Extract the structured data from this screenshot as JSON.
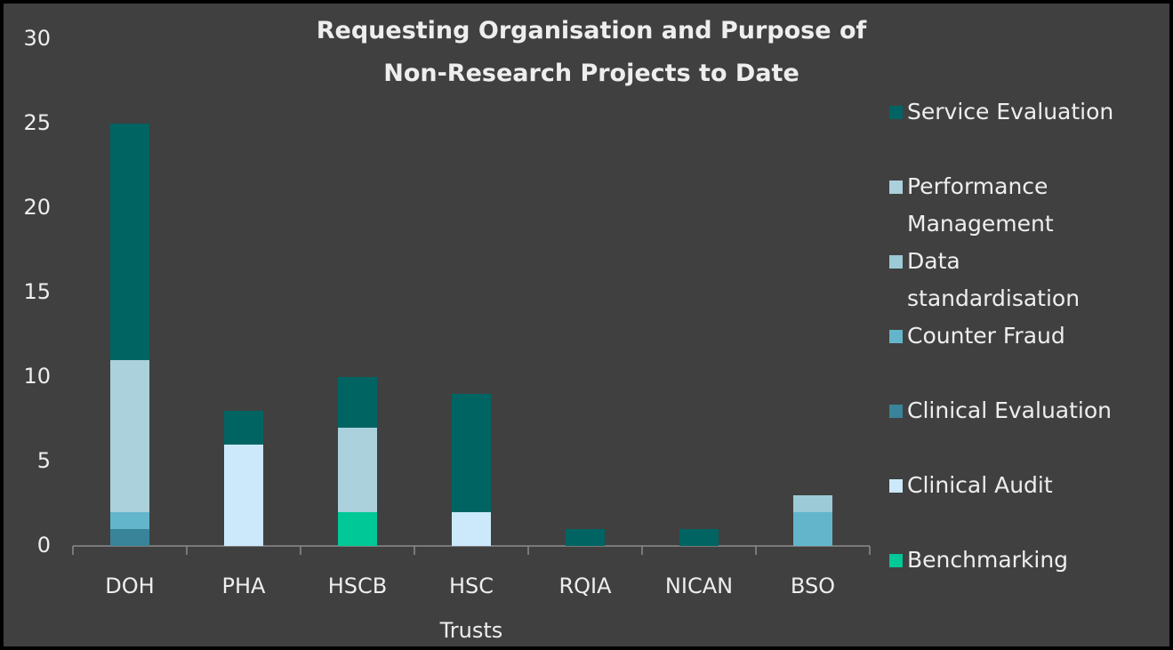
{
  "chart_data": {
    "type": "stacked-bar",
    "title": "Requesting Organisation and Purpose of Non-Research Projects to Date",
    "categories": [
      "DOH",
      "PHA",
      "HSCB",
      "HSC Trusts",
      "RQIA",
      "NICAN",
      "BSO"
    ],
    "series": [
      {
        "name": "Service Evaluation",
        "color": "#006462",
        "values": [
          14,
          2,
          3,
          7,
          1,
          1,
          0
        ]
      },
      {
        "name": "Performance Management",
        "color": "#abd1dc",
        "values": [
          9,
          0,
          5,
          0,
          0,
          0,
          0
        ]
      },
      {
        "name": "Data standardisation",
        "color": "#9ccad6",
        "values": [
          0,
          0,
          0,
          0,
          0,
          0,
          1
        ]
      },
      {
        "name": "Counter Fraud",
        "color": "#63b5cb",
        "values": [
          1,
          0,
          0,
          0,
          0,
          0,
          2
        ]
      },
      {
        "name": "Clinical Evaluation",
        "color": "#3a8499",
        "values": [
          1,
          0,
          0,
          0,
          0,
          0,
          0
        ]
      },
      {
        "name": "Clinical Audit",
        "color": "#cbe9fb",
        "values": [
          0,
          6,
          0,
          2,
          0,
          0,
          0
        ]
      },
      {
        "name": "Benchmarking",
        "color": "#00c896",
        "values": [
          0,
          0,
          2,
          0,
          0,
          0,
          0
        ]
      }
    ],
    "ylim": [
      0,
      30
    ],
    "yticks": [
      0,
      5,
      10,
      15,
      20,
      25,
      30
    ],
    "legend": "right"
  }
}
